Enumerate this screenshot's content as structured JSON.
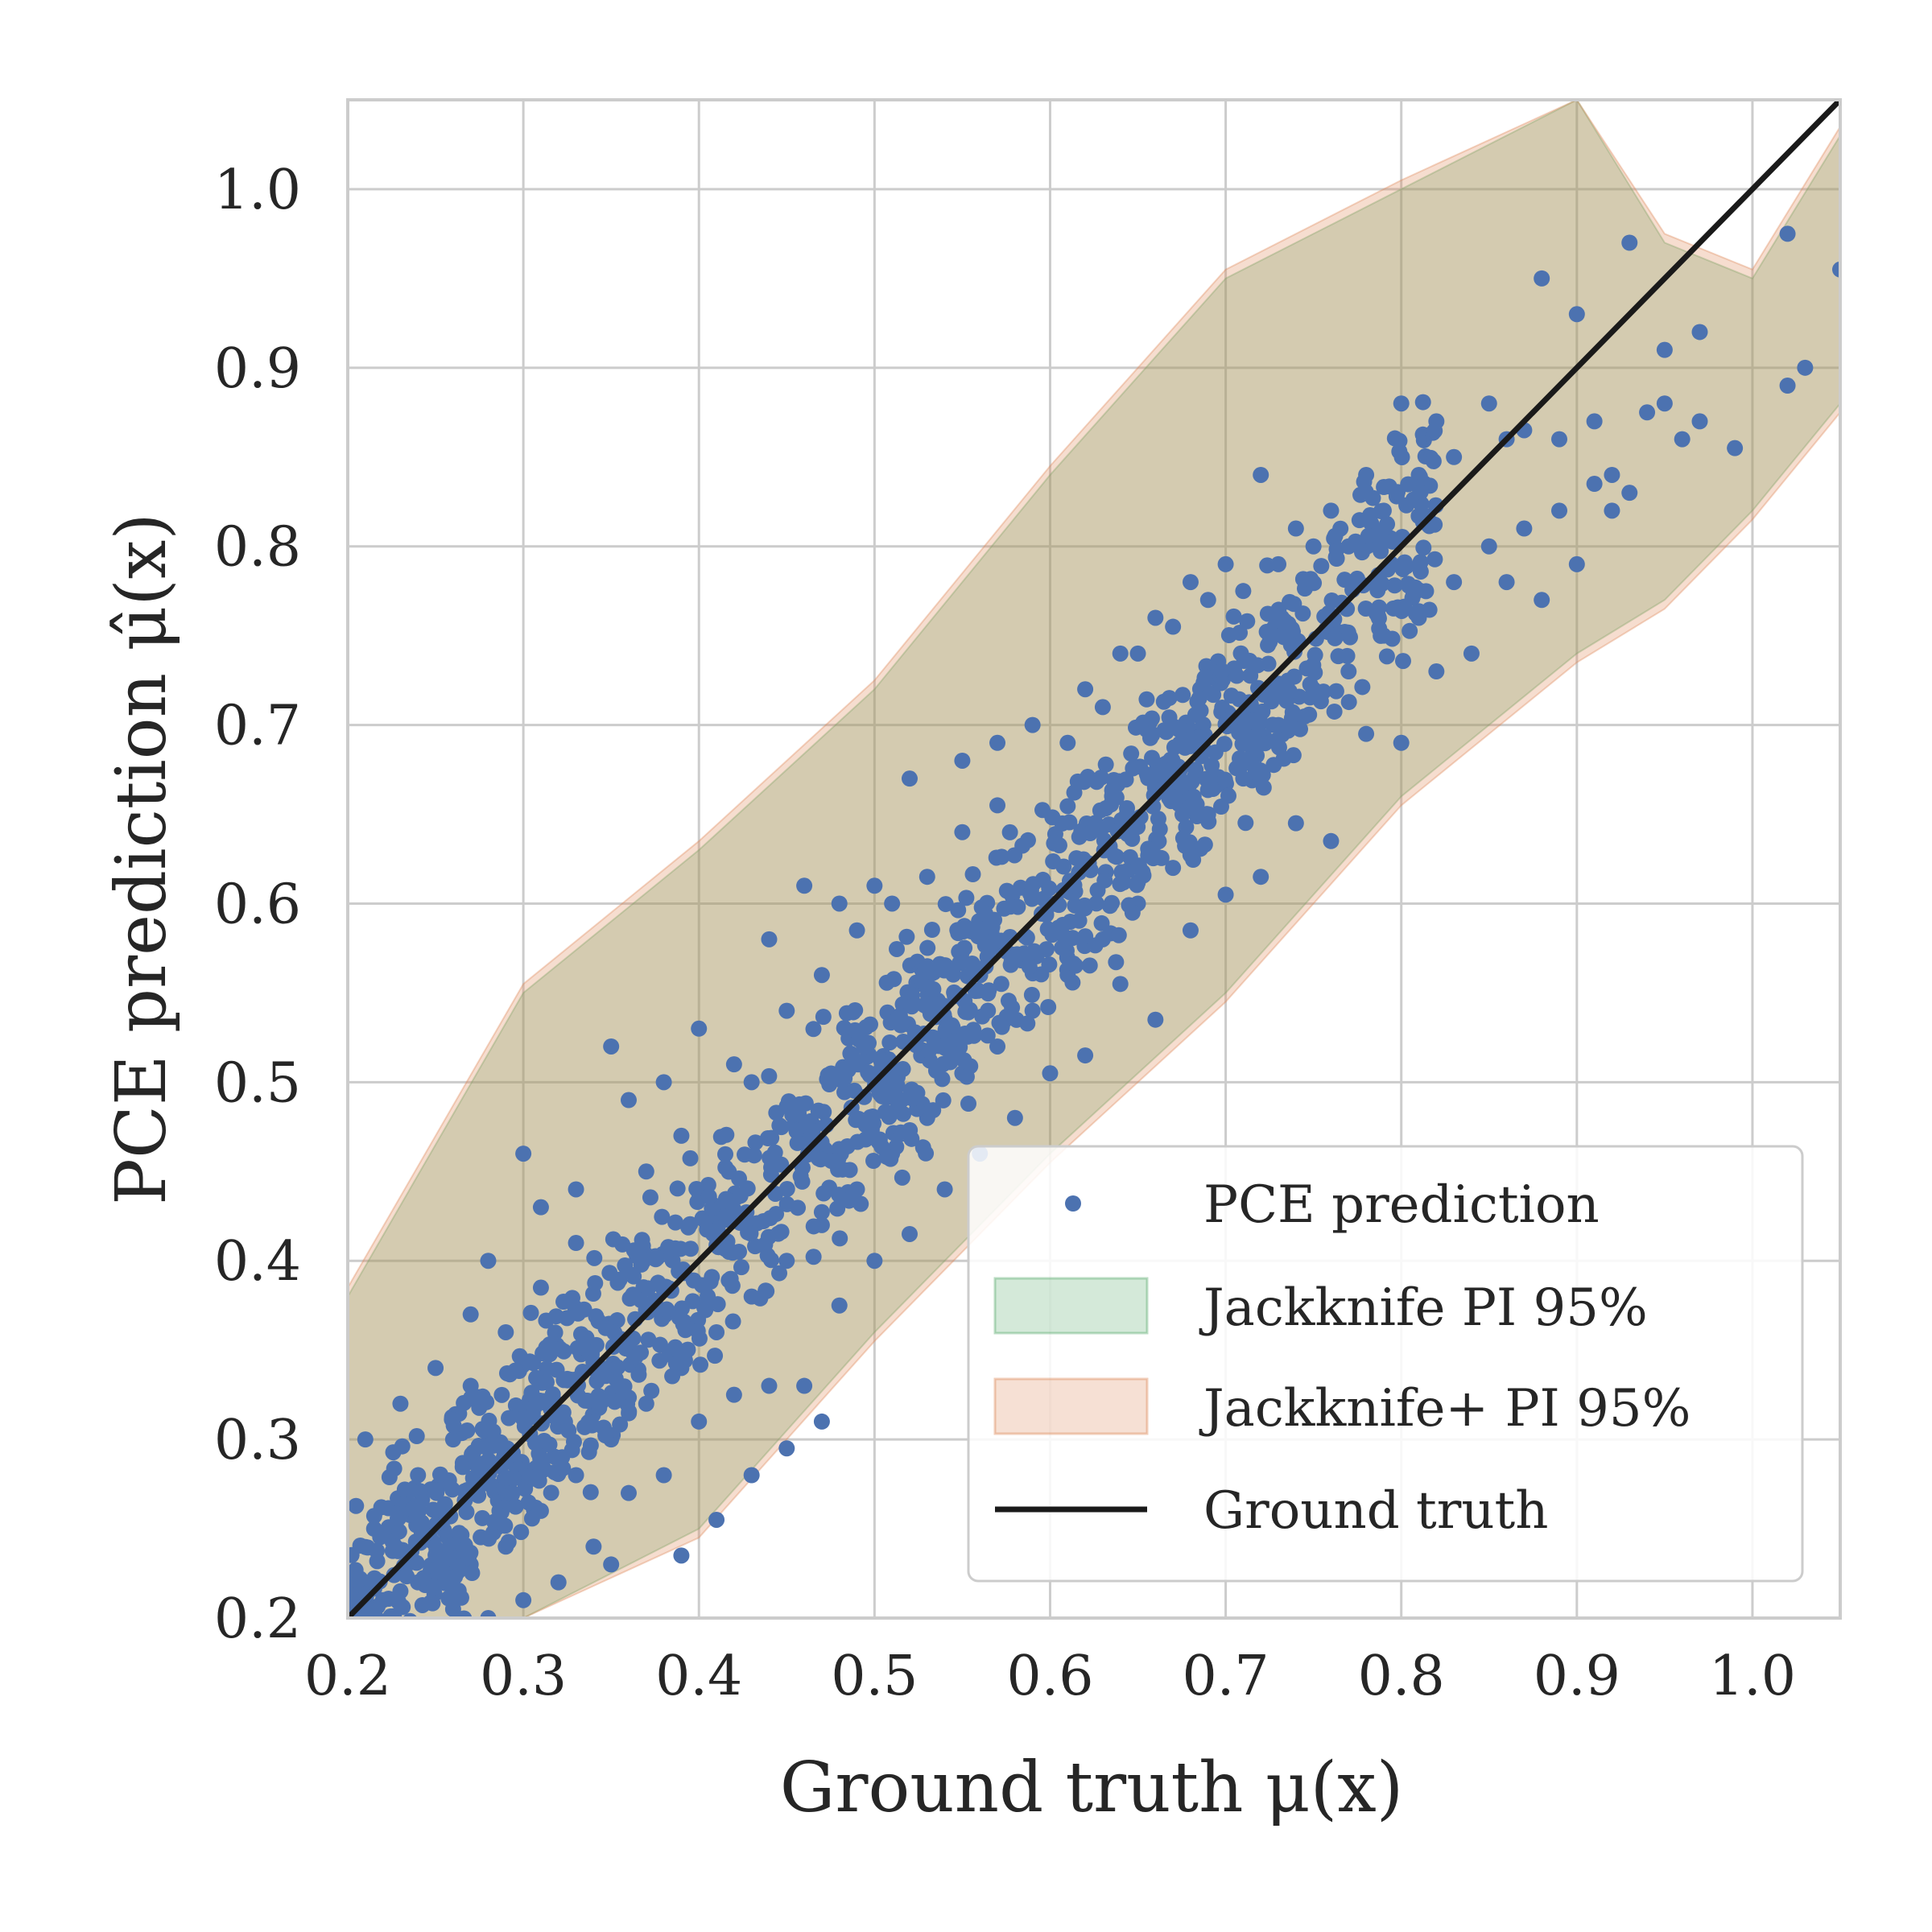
{
  "chart_data": {
    "type": "scatter",
    "title": "",
    "xlabel": "Ground truth μ(x)",
    "ylabel": "PCE prediction μ̂(x)",
    "xlim": [
      0.2,
      1.05
    ],
    "ylim": [
      0.2,
      1.05
    ],
    "grid": true,
    "legend_position": "bottom-right",
    "xticks": [
      "0.2",
      "0.3",
      "0.4",
      "0.5",
      "0.6",
      "0.7",
      "0.8",
      "0.9",
      "1.0"
    ],
    "yticks": [
      "0.2",
      "0.3",
      "0.4",
      "0.5",
      "0.6",
      "0.7",
      "0.8",
      "0.9",
      "1.0"
    ],
    "colors": {
      "points": "#4c72b0",
      "jackknife_band": "#55a868",
      "jackknife_plus_band": "#dd8452",
      "ground_truth": "#1a1a1a",
      "grid": "#cccccc"
    },
    "series": [
      {
        "name": "PCE prediction",
        "kind": "scatter",
        "points": [
          [
            0.21,
            0.3
          ],
          [
            0.215,
            0.25
          ],
          [
            0.23,
            0.32
          ],
          [
            0.25,
            0.34
          ],
          [
            0.27,
            0.37
          ],
          [
            0.28,
            0.4
          ],
          [
            0.3,
            0.46
          ],
          [
            0.31,
            0.43
          ],
          [
            0.33,
            0.44
          ],
          [
            0.35,
            0.52
          ],
          [
            0.36,
            0.49
          ],
          [
            0.38,
            0.5
          ],
          [
            0.4,
            0.53
          ],
          [
            0.42,
            0.51
          ],
          [
            0.44,
            0.58
          ],
          [
            0.46,
            0.61
          ],
          [
            0.48,
            0.6
          ],
          [
            0.5,
            0.61
          ],
          [
            0.52,
            0.67
          ],
          [
            0.55,
            0.68
          ],
          [
            0.57,
            0.69
          ],
          [
            0.59,
            0.7
          ],
          [
            0.62,
            0.72
          ],
          [
            0.64,
            0.74
          ],
          [
            0.66,
            0.76
          ],
          [
            0.68,
            0.78
          ],
          [
            0.7,
            0.79
          ],
          [
            0.72,
            0.84
          ],
          [
            0.74,
            0.81
          ],
          [
            0.76,
            0.82
          ],
          [
            0.78,
            0.84
          ],
          [
            0.8,
            0.88
          ],
          [
            0.82,
            0.87
          ],
          [
            0.85,
            0.88
          ],
          [
            0.88,
            0.95
          ],
          [
            0.9,
            0.93
          ],
          [
            0.93,
            0.97
          ],
          [
            0.95,
            0.91
          ],
          [
            0.97,
            0.92
          ],
          [
            1.02,
            0.975
          ],
          [
            1.05,
            0.955
          ],
          [
            1.03,
            0.9
          ],
          [
            1.02,
            0.89
          ],
          [
            0.99,
            0.855
          ],
          [
            0.97,
            0.87
          ],
          [
            0.96,
            0.86
          ],
          [
            0.93,
            0.83
          ],
          [
            0.92,
            0.82
          ],
          [
            0.9,
            0.79
          ],
          [
            0.88,
            0.77
          ],
          [
            0.86,
            0.78
          ],
          [
            0.84,
            0.74
          ],
          [
            0.82,
            0.73
          ],
          [
            0.8,
            0.69
          ],
          [
            0.78,
            0.695
          ],
          [
            0.76,
            0.635
          ],
          [
            0.74,
            0.645
          ],
          [
            0.72,
            0.615
          ],
          [
            0.7,
            0.605
          ],
          [
            0.68,
            0.585
          ],
          [
            0.66,
            0.535
          ],
          [
            0.64,
            0.555
          ],
          [
            0.62,
            0.515
          ],
          [
            0.6,
            0.505
          ],
          [
            0.58,
            0.48
          ],
          [
            0.56,
            0.46
          ],
          [
            0.54,
            0.44
          ],
          [
            0.52,
            0.415
          ],
          [
            0.5,
            0.4
          ],
          [
            0.48,
            0.375
          ],
          [
            0.46,
            0.33
          ],
          [
            0.44,
            0.33
          ],
          [
            0.42,
            0.325
          ],
          [
            0.4,
            0.31
          ],
          [
            0.38,
            0.28
          ],
          [
            0.36,
            0.27
          ],
          [
            0.34,
            0.24
          ],
          [
            0.32,
            0.22
          ],
          [
            0.3,
            0.21
          ],
          [
            0.28,
            0.2
          ],
          [
            0.26,
            0.205
          ],
          [
            0.24,
            0.22
          ],
          [
            0.22,
            0.21
          ],
          [
            0.39,
            0.235
          ],
          [
            0.41,
            0.255
          ],
          [
            0.43,
            0.28
          ],
          [
            0.35,
            0.23
          ],
          [
            0.45,
            0.295
          ],
          [
            0.47,
            0.31
          ],
          [
            0.27,
            0.33
          ],
          [
            0.29,
            0.36
          ],
          [
            0.31,
            0.385
          ],
          [
            0.26,
            0.3
          ],
          [
            0.24,
            0.28
          ],
          [
            0.33,
            0.41
          ],
          [
            0.37,
            0.45
          ],
          [
            0.39,
            0.47
          ],
          [
            0.43,
            0.5
          ],
          [
            0.45,
            0.54
          ],
          [
            0.47,
            0.56
          ],
          [
            0.49,
            0.585
          ],
          [
            0.51,
            0.6
          ],
          [
            0.53,
            0.615
          ],
          [
            0.55,
            0.64
          ],
          [
            0.57,
            0.655
          ],
          [
            0.61,
            0.69
          ],
          [
            0.63,
            0.71
          ],
          [
            0.65,
            0.74
          ],
          [
            0.67,
            0.755
          ],
          [
            0.69,
            0.77
          ],
          [
            0.71,
            0.775
          ],
          [
            0.73,
            0.79
          ],
          [
            0.75,
            0.8
          ],
          [
            0.77,
            0.8
          ],
          [
            0.79,
            0.82
          ],
          [
            0.81,
            0.84
          ],
          [
            0.83,
            0.85
          ],
          [
            0.86,
            0.86
          ],
          [
            0.87,
            0.865
          ],
          [
            0.89,
            0.86
          ],
          [
            0.91,
            0.87
          ],
          [
            0.94,
            0.875
          ],
          [
            0.95,
            0.88
          ],
          [
            0.92,
            0.84
          ],
          [
            0.91,
            0.835
          ],
          [
            0.89,
            0.82
          ],
          [
            0.87,
            0.81
          ],
          [
            0.85,
            0.8
          ],
          [
            0.83,
            0.78
          ],
          [
            0.81,
            0.76
          ],
          [
            0.79,
            0.75
          ],
          [
            0.77,
            0.73
          ],
          [
            0.75,
            0.72
          ],
          [
            0.73,
            0.7
          ],
          [
            0.71,
            0.67
          ],
          [
            0.69,
            0.65
          ],
          [
            0.67,
            0.62
          ],
          [
            0.65,
            0.6
          ],
          [
            0.63,
            0.58
          ],
          [
            0.61,
            0.56
          ],
          [
            0.59,
            0.54
          ],
          [
            0.57,
            0.52
          ],
          [
            0.55,
            0.505
          ],
          [
            0.53,
            0.48
          ],
          [
            0.51,
            0.46
          ],
          [
            0.49,
            0.44
          ],
          [
            0.47,
            0.42
          ],
          [
            0.45,
            0.4
          ],
          [
            0.43,
            0.38
          ],
          [
            0.41,
            0.36
          ],
          [
            0.39,
            0.34
          ],
          [
            0.37,
            0.32
          ],
          [
            0.35,
            0.3
          ],
          [
            0.33,
            0.28
          ],
          [
            0.31,
            0.26
          ],
          [
            0.29,
            0.24
          ],
          [
            0.27,
            0.23
          ],
          [
            0.25,
            0.22
          ],
          [
            0.23,
            0.215
          ],
          [
            0.215,
            0.22
          ]
        ]
      },
      {
        "name": "Jackknife PI 95%",
        "kind": "band",
        "x": [
          0.2,
          0.3,
          0.4,
          0.5,
          0.6,
          0.7,
          0.8,
          0.9,
          0.95,
          1.0,
          1.05
        ],
        "lower": [
          0.2,
          0.2,
          0.25,
          0.36,
          0.46,
          0.55,
          0.66,
          0.74,
          0.77,
          0.82,
          0.88
        ],
        "upper": [
          0.38,
          0.55,
          0.63,
          0.72,
          0.84,
          0.95,
          1.0,
          1.05,
          0.97,
          0.95,
          1.03
        ]
      },
      {
        "name": "Jackknife+ PI 95%",
        "kind": "band",
        "x": [
          0.2,
          0.3,
          0.4,
          0.5,
          0.6,
          0.7,
          0.8,
          0.9,
          0.95,
          1.0,
          1.05
        ],
        "lower": [
          0.2,
          0.2,
          0.245,
          0.355,
          0.455,
          0.545,
          0.655,
          0.735,
          0.765,
          0.815,
          0.875
        ],
        "upper": [
          0.385,
          0.555,
          0.635,
          0.725,
          0.845,
          0.955,
          1.005,
          1.05,
          0.975,
          0.955,
          1.035
        ]
      },
      {
        "name": "Ground truth",
        "kind": "line",
        "points": [
          [
            0.2,
            0.2
          ],
          [
            1.05,
            1.05
          ]
        ]
      }
    ],
    "legend": [
      "PCE prediction",
      "Jackknife PI 95%",
      "Jackknife+ PI 95%",
      "Ground truth"
    ]
  }
}
